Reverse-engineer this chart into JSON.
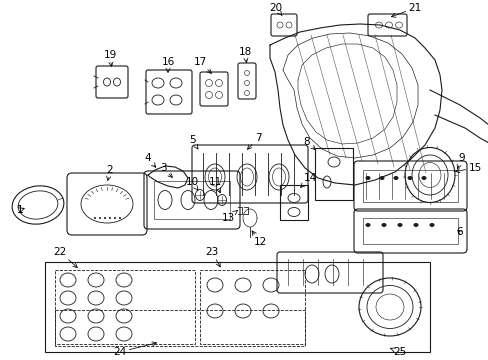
{
  "bg_color": "#ffffff",
  "line_color": "#1a1a1a",
  "label_color": "#000000",
  "figsize": [
    4.89,
    3.6
  ],
  "dpi": 100
}
